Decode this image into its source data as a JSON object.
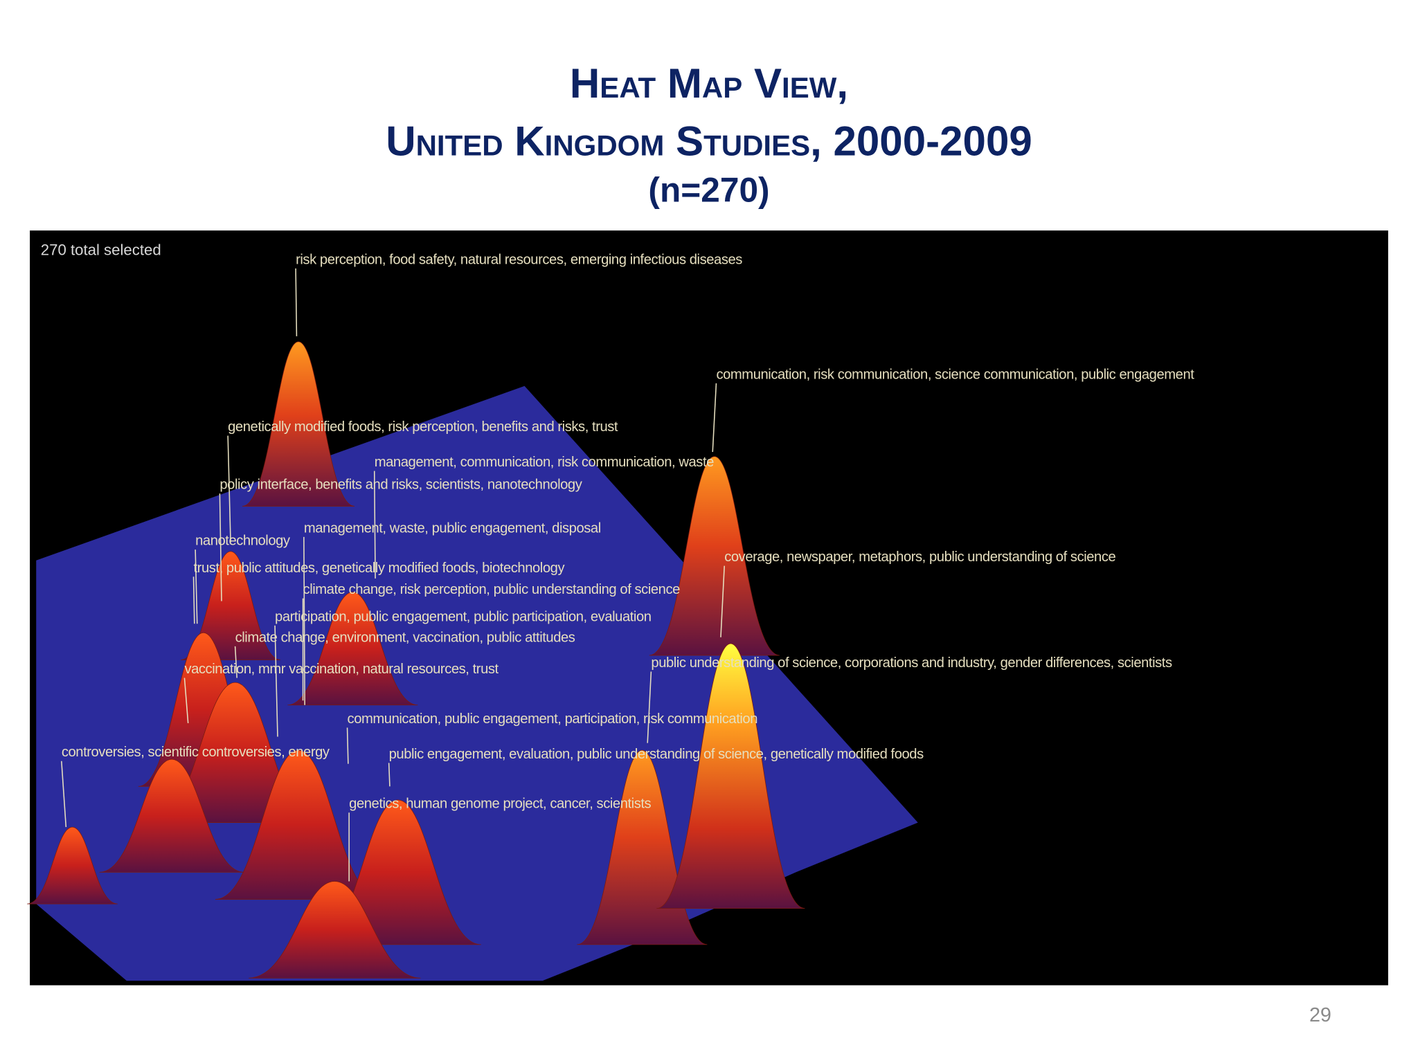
{
  "slide": {
    "title_lines": [
      "Heat Map View,",
      "United Kingdom Studies, 2000-2009"
    ],
    "subtitle": "(n=270)",
    "page_number": "29"
  },
  "heat_map": {
    "status": "270 total selected",
    "labels": [
      "risk perception, food safety, natural resources, emerging infectious diseases",
      "communication, risk communication, science communication, public engagement",
      "genetically modified foods, risk perception, benefits and risks, trust",
      "management, communication, risk communication, waste",
      "policy interface, benefits and risks, scientists, nanotechnology",
      "management, waste, public engagement, disposal",
      "nanotechnology",
      "coverage, newspaper, metaphors, public understanding of science",
      "trust, public attitudes, genetically modified foods, biotechnology",
      "climate change, risk perception, public understanding of science",
      "participation, public engagement, public participation, evaluation",
      "climate change, environment, vaccination, public attitudes",
      "public understanding of science, corporations and industry, gender differences, scientists",
      "vaccination, mmr vaccination, natural resources, trust",
      "communication, public engagement, participation, risk communication",
      "controversies, scientific controversies, energy",
      "public engagement, evaluation, public understanding of science, genetically modified foods",
      "genetics, human genome project, cancer, scientists"
    ]
  }
}
